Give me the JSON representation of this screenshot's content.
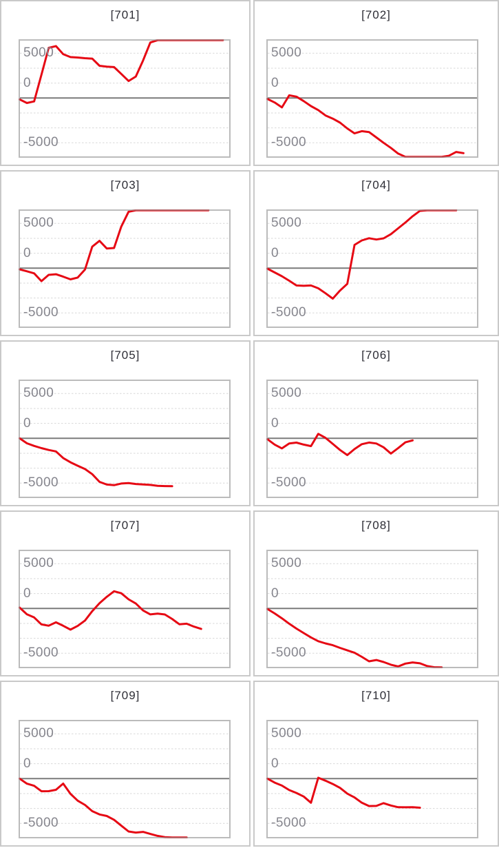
{
  "axis": {
    "tick_labels": [
      "5000",
      "0",
      "-5000"
    ],
    "tick_values": [
      5000,
      0,
      -5000
    ]
  },
  "style": {
    "line_color": "#e60914",
    "zero_line_color": "#7a7a7a",
    "gridline_color": "#d7d7d7",
    "plot_border_color": "rgba(150,150,150,0.65)",
    "card_border_color": "#c9c9c9",
    "title_color": "#2d2d35",
    "label_color": "#85858d"
  },
  "chart_data": [
    {
      "type": "line",
      "title": "[701]",
      "y_ticks": [
        5000,
        0,
        -5000
      ],
      "ylim": [
        -6700,
        6700
      ],
      "grid": "dashed",
      "values": [
        -150,
        -550,
        -380,
        2600,
        5600,
        5800,
        4900,
        4570,
        4520,
        4450,
        4400,
        3600,
        3500,
        3450,
        2690,
        1900,
        2400,
        4200,
        6200,
        6700,
        6700,
        6700,
        6700,
        6700,
        6700,
        6700,
        6700,
        6700,
        6700
      ]
    },
    {
      "type": "line",
      "title": "[702]",
      "y_ticks": [
        5000,
        0,
        -5000
      ],
      "ylim": [
        -6700,
        6700
      ],
      "grid": "dashed",
      "values": [
        -100,
        -500,
        -1050,
        300,
        150,
        -350,
        -900,
        -1350,
        -1950,
        -2300,
        -2750,
        -3400,
        -3950,
        -3700,
        -3800,
        -4400,
        -5000,
        -5570,
        -6200,
        -6600,
        -6700,
        -6700,
        -6700,
        -6700,
        -6700,
        -6450,
        -6020,
        -6150
      ]
    },
    {
      "type": "line",
      "title": "[703]",
      "y_ticks": [
        5000,
        0,
        -5000
      ],
      "ylim": [
        -6700,
        6700
      ],
      "grid": "dashed",
      "values": [
        -130,
        -350,
        -580,
        -1450,
        -750,
        -680,
        -950,
        -1250,
        -1050,
        -150,
        2400,
        3050,
        2200,
        2250,
        4650,
        6300,
        6700,
        6700,
        6700,
        6700,
        6700,
        6700,
        6700,
        6700,
        6700,
        6700,
        6700
      ]
    },
    {
      "type": "line",
      "title": "[704]",
      "y_ticks": [
        5000,
        0,
        -5000
      ],
      "ylim": [
        -6700,
        6700
      ],
      "grid": "dashed",
      "values": [
        -50,
        -480,
        -900,
        -1400,
        -1930,
        -1970,
        -1930,
        -2250,
        -2800,
        -3400,
        -2500,
        -1750,
        2600,
        3100,
        3350,
        3200,
        3330,
        3800,
        4450,
        5100,
        5800,
        6400,
        6700,
        6700,
        6700,
        6700,
        6700
      ]
    },
    {
      "type": "line",
      "title": "[705]",
      "y_ticks": [
        5000,
        0,
        -5000
      ],
      "ylim": [
        -6700,
        6700
      ],
      "grid": "dashed",
      "values": [
        0,
        -550,
        -850,
        -1090,
        -1300,
        -1460,
        -2200,
        -2680,
        -3060,
        -3430,
        -4000,
        -4860,
        -5160,
        -5230,
        -5050,
        -5000,
        -5100,
        -5150,
        -5200,
        -5300,
        -5330,
        -5350
      ]
    },
    {
      "type": "line",
      "title": "[706]",
      "y_ticks": [
        5000,
        0,
        -5000
      ],
      "ylim": [
        -6700,
        6700
      ],
      "grid": "dashed",
      "values": [
        -100,
        -700,
        -1120,
        -580,
        -480,
        -700,
        -870,
        500,
        50,
        -620,
        -1300,
        -1870,
        -1200,
        -650,
        -470,
        -580,
        -1000,
        -1700,
        -1100,
        -450,
        -230
      ]
    },
    {
      "type": "line",
      "title": "[707]",
      "y_ticks": [
        5000,
        0,
        -5000
      ],
      "ylim": [
        -6700,
        6700
      ],
      "grid": "dashed",
      "values": [
        100,
        -650,
        -1000,
        -1780,
        -1920,
        -1550,
        -1930,
        -2360,
        -1950,
        -1350,
        -300,
        590,
        1300,
        1920,
        1700,
        1020,
        550,
        -220,
        -660,
        -580,
        -670,
        -1170,
        -1760,
        -1700,
        -2020,
        -2280
      ]
    },
    {
      "type": "line",
      "title": "[708]",
      "y_ticks": [
        5000,
        0,
        -5000
      ],
      "ylim": [
        -6700,
        6700
      ],
      "grid": "dashed",
      "values": [
        -50,
        -550,
        -1100,
        -1700,
        -2250,
        -2750,
        -3230,
        -3650,
        -3900,
        -4100,
        -4400,
        -4680,
        -4950,
        -5400,
        -5900,
        -5750,
        -5980,
        -6280,
        -6480,
        -6150,
        -6020,
        -6120,
        -6430,
        -6560,
        -6620
      ]
    },
    {
      "type": "line",
      "title": "[709]",
      "y_ticks": [
        5000,
        0,
        -5000
      ],
      "ylim": [
        -6700,
        6700
      ],
      "grid": "dashed",
      "values": [
        0,
        -560,
        -800,
        -1410,
        -1400,
        -1250,
        -550,
        -1700,
        -2460,
        -2940,
        -3630,
        -4000,
        -4170,
        -4600,
        -5250,
        -5900,
        -6020,
        -5950,
        -6180,
        -6390,
        -6530,
        -6610,
        -6650,
        -6660
      ]
    },
    {
      "type": "line",
      "title": "[710]",
      "y_ticks": [
        5000,
        0,
        -5000
      ],
      "ylim": [
        -6700,
        6700
      ],
      "grid": "dashed",
      "values": [
        0,
        -450,
        -780,
        -1280,
        -1600,
        -2000,
        -2690,
        100,
        -230,
        -600,
        -1030,
        -1680,
        -2100,
        -2690,
        -3060,
        -3050,
        -2740,
        -3000,
        -3190,
        -3200,
        -3190,
        -3250
      ]
    }
  ]
}
